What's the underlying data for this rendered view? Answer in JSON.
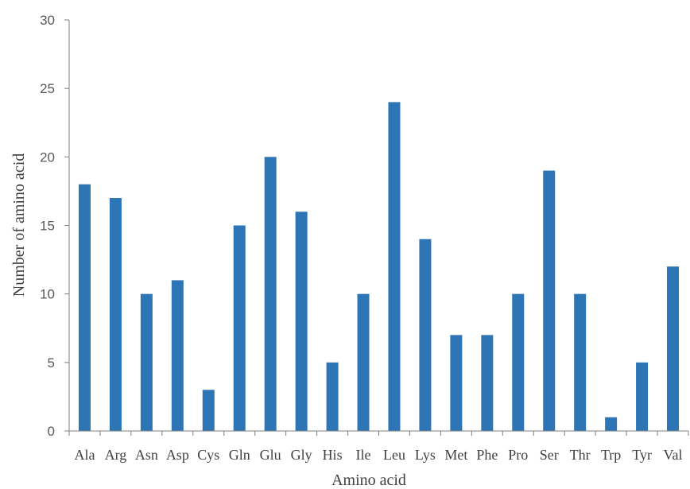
{
  "chart_data": {
    "type": "bar",
    "title": "",
    "xlabel": "Amino acid",
    "ylabel": "Number of amino acid",
    "categories": [
      "Ala",
      "Arg",
      "Asn",
      "Asp",
      "Cys",
      "Gln",
      "Glu",
      "Gly",
      "His",
      "Ile",
      "Leu",
      "Lys",
      "Met",
      "Phe",
      "Pro",
      "Ser",
      "Thr",
      "Trp",
      "Tyr",
      "Val"
    ],
    "values": [
      18,
      17,
      10,
      11,
      3,
      15,
      20,
      16,
      5,
      10,
      24,
      14,
      7,
      7,
      10,
      19,
      10,
      1,
      5,
      12
    ],
    "ylim": [
      0,
      30
    ],
    "yticks": [
      0,
      5,
      10,
      15,
      20,
      25,
      30
    ],
    "grid": false,
    "legend": "none",
    "bar_color": "#2E75B6",
    "axis_color": "#7F7F7F"
  }
}
